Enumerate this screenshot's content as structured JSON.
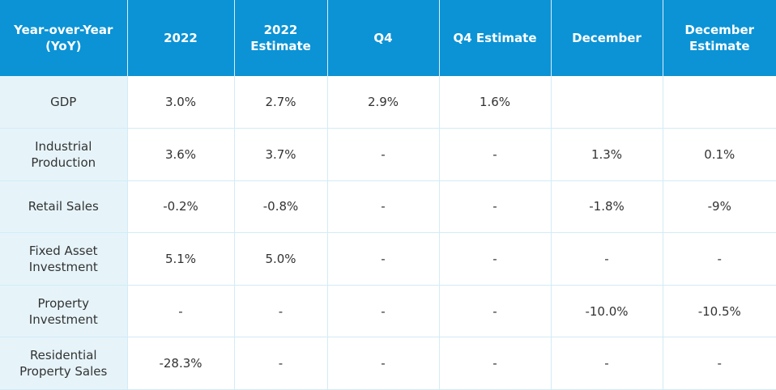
{
  "table": {
    "headers": [
      "Year-over-Year (YoY)",
      "2022",
      "2022 Estimate",
      "Q4",
      "Q4 Estimate",
      "December",
      "December Estimate"
    ],
    "rows": [
      {
        "label": "GDP",
        "cells": [
          "3.0%",
          "2.7%",
          "2.9%",
          "1.6%",
          "",
          ""
        ]
      },
      {
        "label": "Industrial Production",
        "cells": [
          "3.6%",
          "3.7%",
          "-",
          "-",
          "1.3%",
          "0.1%"
        ]
      },
      {
        "label": "Retail Sales",
        "cells": [
          "-0.2%",
          "-0.8%",
          "-",
          "-",
          "-1.8%",
          "-9%"
        ]
      },
      {
        "label": "Fixed Asset Investment",
        "cells": [
          "5.1%",
          "5.0%",
          "-",
          "-",
          "-",
          "-"
        ]
      },
      {
        "label": "Property Investment",
        "cells": [
          "-",
          "-",
          "-",
          "-",
          "-10.0%",
          "-10.5%"
        ]
      },
      {
        "label": "Residential Property Sales",
        "cells": [
          "-28.3%",
          "-",
          "-",
          "-",
          "-",
          "-"
        ]
      }
    ]
  },
  "colors": {
    "header_bg": "#0b93d6",
    "header_text": "#ffffff",
    "label_bg": "#e6f4fa",
    "grid": "#d2ecf7",
    "body_text": "#333333"
  }
}
